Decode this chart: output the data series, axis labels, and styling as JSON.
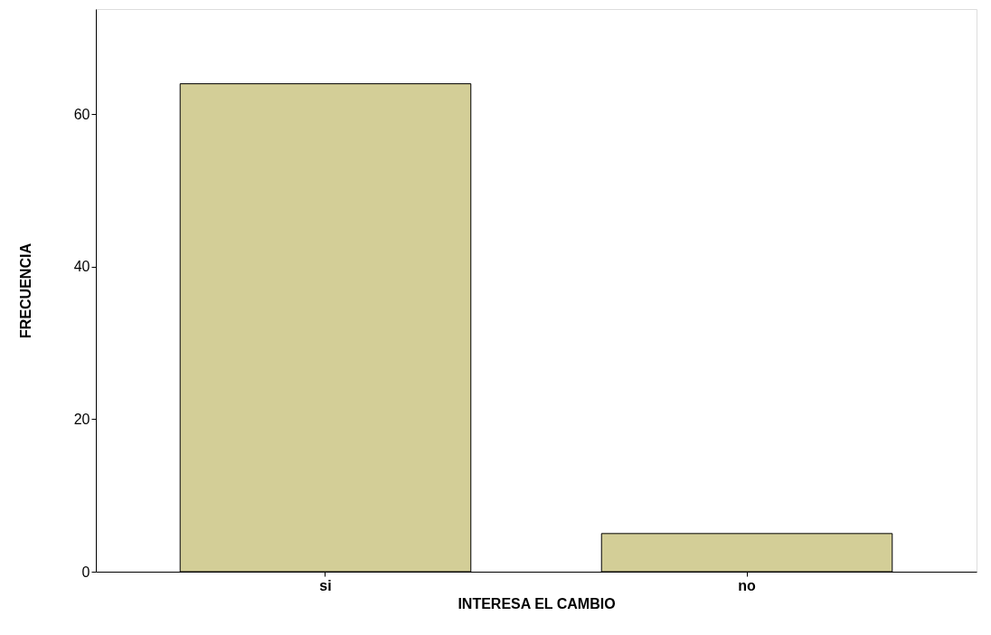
{
  "chart_data": {
    "type": "bar",
    "xlabel": "INTERESA EL CAMBIO",
    "ylabel": "FRECUENCIA",
    "categories": [
      "si",
      "no"
    ],
    "values": [
      64,
      5
    ],
    "color": "#d3ce97",
    "ylim": [
      0,
      73.8
    ],
    "yticks": [
      0,
      20,
      40,
      60
    ],
    "grid": false
  }
}
